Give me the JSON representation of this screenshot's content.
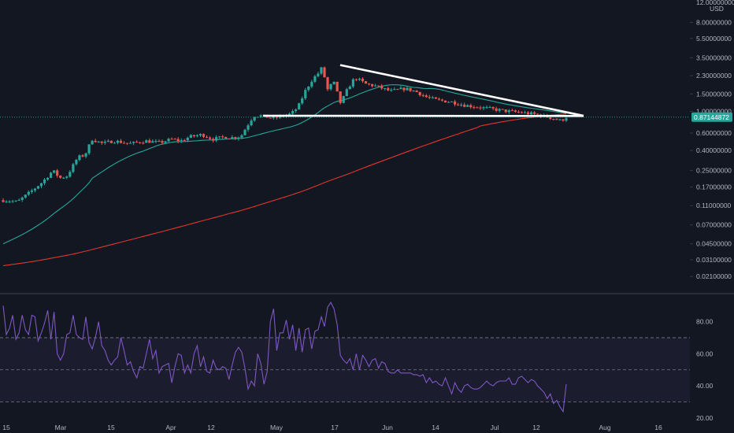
{
  "chart_data": {
    "type": "candlestick",
    "price_scale": "log",
    "currency_label": "USD",
    "price_axis": {
      "top_label": "12.00000000",
      "ticks": [
        8.0,
        5.5,
        3.5,
        2.3,
        1.5,
        1.0,
        0.6,
        0.4,
        0.25,
        0.17,
        0.11,
        0.07,
        0.045,
        0.031,
        0.021
      ],
      "tick_labels": [
        "8.00000000",
        "5.50000000",
        "3.50000000",
        "2.30000000",
        "1.50000000",
        "1.00000000",
        "0.60000000",
        "0.40000000",
        "0.25000000",
        "0.17000000",
        "0.11000000",
        "0.07000000",
        "0.04500000",
        "0.03100000",
        "0.02100000"
      ],
      "ylim": [
        0.0185,
        13.5
      ]
    },
    "current_price": {
      "value": 0.87144872,
      "label": "0.87144872",
      "color": "#26a69a"
    },
    "time_axis": {
      "labels": [
        "15",
        "Mar",
        "15",
        "Apr",
        "12",
        "May",
        "17",
        "Jun",
        "14",
        "Jul",
        "12",
        "Aug",
        "16"
      ]
    },
    "colors": {
      "background": "#131722",
      "up": "#26a69a",
      "down": "#ef5350",
      "ma_fast": "#26a69a",
      "ma_slow": "#e0362c",
      "trendlines": "#ffffff",
      "rsi_line": "#7e57c2",
      "rsi_band": "#7e57c2",
      "grid": "#1e2230"
    },
    "trendlines": [
      {
        "name": "descending-resistance",
        "from": [
          "May 17",
          3.0
        ],
        "to": [
          "Jul 28",
          0.88
        ]
      },
      {
        "name": "horizontal-support",
        "from": [
          "Apr 30",
          0.9
        ],
        "to": [
          "Jul 28",
          0.88
        ]
      }
    ],
    "rsi": {
      "levels": [
        70,
        50,
        30
      ],
      "tick_labels": [
        "80.00",
        "60.00",
        "40.00",
        "20.00"
      ],
      "ticks": [
        80,
        60,
        40,
        20
      ],
      "ylim": [
        18,
        94
      ],
      "values": [
        90,
        72,
        76,
        84,
        69,
        73,
        84,
        75,
        72,
        84,
        83,
        68,
        73,
        79,
        87,
        69,
        86,
        60,
        56,
        60,
        72,
        73,
        84,
        72,
        70,
        69,
        83,
        67,
        63,
        70,
        80,
        65,
        62,
        56,
        53,
        56,
        58,
        70,
        62,
        53,
        55,
        49,
        45,
        52,
        51,
        60,
        69,
        57,
        62,
        48,
        52,
        53,
        54,
        42,
        52,
        60,
        59,
        48,
        53,
        48,
        60,
        65,
        52,
        58,
        49,
        48,
        56,
        51,
        50,
        52,
        51,
        44,
        53,
        61,
        64,
        61,
        51,
        38,
        43,
        40,
        60,
        54,
        41,
        49,
        80,
        88,
        62,
        73,
        73,
        81,
        69,
        78,
        62,
        76,
        61,
        75,
        76,
        63,
        74,
        75,
        83,
        77,
        89,
        92,
        88,
        78,
        59,
        56,
        54,
        57,
        50,
        60,
        50,
        59,
        56,
        52,
        56,
        57,
        51,
        55,
        54,
        49,
        48,
        48,
        50,
        48,
        48,
        48,
        48,
        47,
        47,
        46,
        47,
        42,
        45,
        42,
        43,
        41,
        40,
        45,
        40,
        35,
        42,
        38,
        36,
        40,
        41,
        39,
        38,
        38,
        39,
        41,
        43,
        41,
        40,
        42,
        43,
        43,
        43,
        45,
        41,
        41,
        45,
        46,
        44,
        42,
        44,
        43,
        40,
        38,
        36,
        32,
        35,
        29,
        31,
        27,
        24,
        41
      ]
    },
    "ohlc": []
  }
}
